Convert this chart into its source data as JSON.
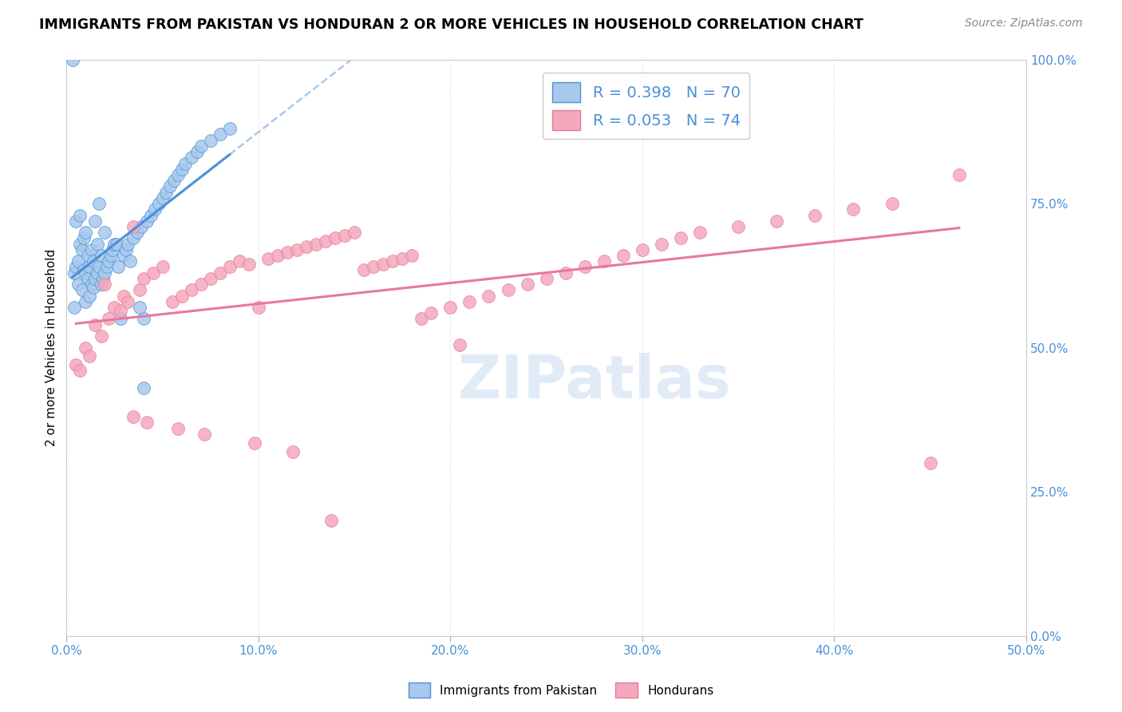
{
  "title": "IMMIGRANTS FROM PAKISTAN VS HONDURAN 2 OR MORE VEHICLES IN HOUSEHOLD CORRELATION CHART",
  "source": "Source: ZipAtlas.com",
  "ylabel": "2 or more Vehicles in Household",
  "yticks": [
    "0.0%",
    "25.0%",
    "50.0%",
    "75.0%",
    "100.0%"
  ],
  "ytick_vals": [
    0.0,
    25.0,
    50.0,
    75.0,
    100.0
  ],
  "xtick_vals": [
    0,
    10,
    20,
    30,
    40,
    50
  ],
  "xtick_labels": [
    "0.0%",
    "10.0%",
    "20.0%",
    "30.0%",
    "40.0%",
    "50.0%"
  ],
  "xrange": [
    0.0,
    50.0
  ],
  "yrange": [
    0.0,
    100.0
  ],
  "legend_labels": [
    "Immigrants from Pakistan",
    "Hondurans"
  ],
  "r_pakistan": 0.398,
  "n_pakistan": 70,
  "r_honduran": 0.053,
  "n_honduran": 74,
  "color_pakistan": "#a8c8ec",
  "color_honduran": "#f4a8bc",
  "line_color_pakistan": "#4a90d9",
  "line_color_honduran": "#e8789a",
  "dashed_line_color": "#a8c8ec",
  "background_color": "#ffffff",
  "text_color_blue": "#4a90d9",
  "watermark": "ZIPatlas",
  "pak_x": [
    0.3,
    0.4,
    0.4,
    0.5,
    0.5,
    0.6,
    0.6,
    0.7,
    0.7,
    0.8,
    0.8,
    0.9,
    0.9,
    1.0,
    1.0,
    1.0,
    1.1,
    1.1,
    1.2,
    1.2,
    1.3,
    1.3,
    1.4,
    1.4,
    1.5,
    1.5,
    1.6,
    1.6,
    1.7,
    1.7,
    1.8,
    1.8,
    1.9,
    2.0,
    2.0,
    2.1,
    2.2,
    2.3,
    2.4,
    2.5,
    2.6,
    2.7,
    2.8,
    3.0,
    3.1,
    3.2,
    3.3,
    3.5,
    3.7,
    3.9,
    4.0,
    4.2,
    4.4,
    4.6,
    4.8,
    5.0,
    5.2,
    5.4,
    5.6,
    5.8,
    6.0,
    6.2,
    6.5,
    6.8,
    7.0,
    7.5,
    8.0,
    8.5,
    4.0,
    3.8
  ],
  "pak_y": [
    100.0,
    63.0,
    57.0,
    64.0,
    72.0,
    61.0,
    65.0,
    68.0,
    73.0,
    60.0,
    67.0,
    63.5,
    69.0,
    58.0,
    63.0,
    70.0,
    62.0,
    66.0,
    59.0,
    64.0,
    61.0,
    67.0,
    60.5,
    65.0,
    62.0,
    72.0,
    63.0,
    68.0,
    64.0,
    75.0,
    61.0,
    66.0,
    62.0,
    63.0,
    70.0,
    64.0,
    65.0,
    66.0,
    67.0,
    68.0,
    68.0,
    64.0,
    55.0,
    66.0,
    67.0,
    68.0,
    65.0,
    69.0,
    70.0,
    71.0,
    55.0,
    72.0,
    73.0,
    74.0,
    75.0,
    76.0,
    77.0,
    78.0,
    79.0,
    80.0,
    81.0,
    82.0,
    83.0,
    84.0,
    85.0,
    86.0,
    87.0,
    88.0,
    43.0,
    57.0
  ],
  "hon_x": [
    0.5,
    0.7,
    1.0,
    1.2,
    1.5,
    1.8,
    2.0,
    2.2,
    2.5,
    2.8,
    3.0,
    3.2,
    3.5,
    3.8,
    4.0,
    4.5,
    5.0,
    5.5,
    6.0,
    6.5,
    7.0,
    7.5,
    8.0,
    8.5,
    9.0,
    9.5,
    10.0,
    10.5,
    11.0,
    11.5,
    12.0,
    12.5,
    13.0,
    13.5,
    14.0,
    14.5,
    15.0,
    15.5,
    16.0,
    16.5,
    17.0,
    17.5,
    18.0,
    18.5,
    19.0,
    20.0,
    21.0,
    22.0,
    23.0,
    24.0,
    25.0,
    26.0,
    27.0,
    28.0,
    29.0,
    30.0,
    31.0,
    32.0,
    33.0,
    35.0,
    37.0,
    39.0,
    41.0,
    43.0,
    45.0,
    46.5,
    3.5,
    4.2,
    5.8,
    7.2,
    9.8,
    11.8,
    13.8,
    20.5
  ],
  "hon_y": [
    47.0,
    46.0,
    50.0,
    48.5,
    54.0,
    52.0,
    61.0,
    55.0,
    57.0,
    56.5,
    59.0,
    58.0,
    71.0,
    60.0,
    62.0,
    63.0,
    64.0,
    58.0,
    59.0,
    60.0,
    61.0,
    62.0,
    63.0,
    64.0,
    65.0,
    64.5,
    57.0,
    65.5,
    66.0,
    66.5,
    67.0,
    67.5,
    68.0,
    68.5,
    69.0,
    69.5,
    70.0,
    63.5,
    64.0,
    64.5,
    65.0,
    65.5,
    66.0,
    55.0,
    56.0,
    57.0,
    58.0,
    59.0,
    60.0,
    61.0,
    62.0,
    63.0,
    64.0,
    65.0,
    66.0,
    67.0,
    68.0,
    69.0,
    70.0,
    71.0,
    72.0,
    73.0,
    74.0,
    75.0,
    30.0,
    80.0,
    38.0,
    37.0,
    36.0,
    35.0,
    33.5,
    32.0,
    20.0,
    50.5
  ]
}
